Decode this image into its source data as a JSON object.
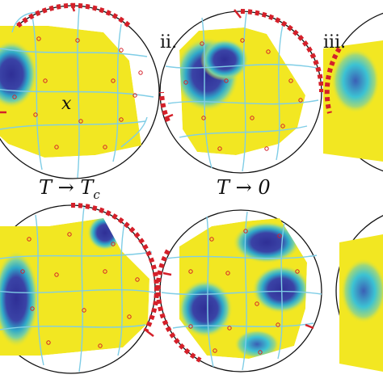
{
  "labels": {
    "panel_ii": "ii.",
    "panel_iii": "iii.",
    "x_label": "x",
    "row_label_left": "T → T",
    "row_label_left_sub": "c",
    "row_label_right": "T → 0"
  },
  "colors": {
    "yellow": "#f2e722",
    "blue": "#36399e",
    "cyan": "#3cc2d3",
    "mesh": "#7fcde6",
    "boundary": "#d4202a",
    "circle": "#111111"
  }
}
